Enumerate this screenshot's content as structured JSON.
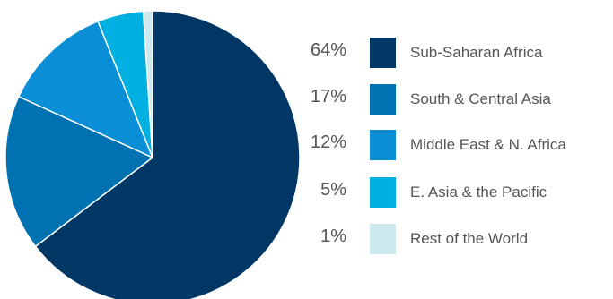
{
  "chart_data": {
    "type": "pie",
    "title": "",
    "categories": [
      "Sub-Saharan Africa",
      "South & Central Asia",
      "Middle East & N. Africa",
      "E. Asia & the Pacific",
      "Rest of the World"
    ],
    "values": [
      64,
      17,
      12,
      5,
      1
    ],
    "value_labels": [
      "64%",
      "17%",
      "12%",
      "5%",
      "1%"
    ],
    "colors": [
      "#003764",
      "#0072B2",
      "#0A8FD6",
      "#00B0E0",
      "#CDE9EE"
    ],
    "slice_border_color": "#ffffff",
    "start_angle_deg": 0,
    "direction": "clockwise",
    "legend_placement": "right"
  }
}
